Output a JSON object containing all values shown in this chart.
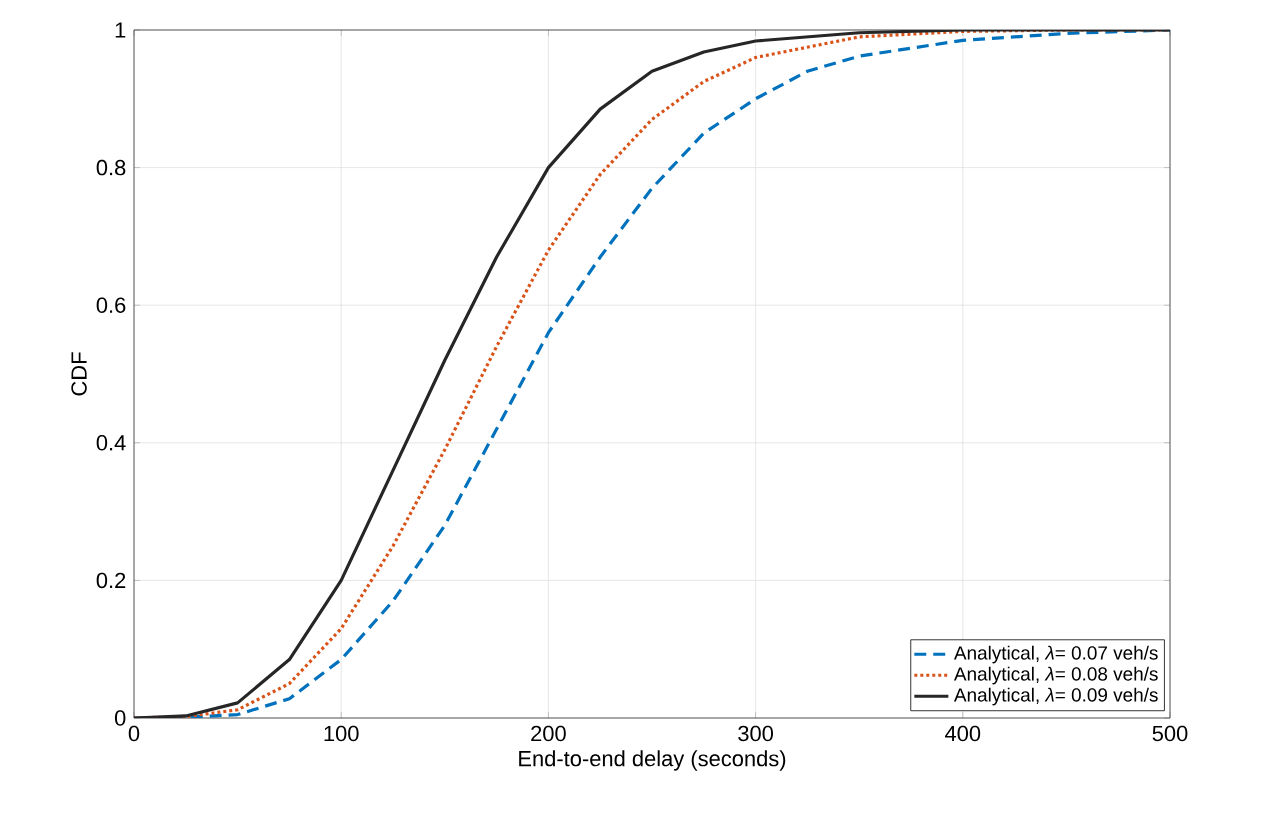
{
  "chart_data": {
    "type": "line",
    "xlabel": "End-to-end delay (seconds)",
    "ylabel": "CDF",
    "xlim": [
      0,
      500
    ],
    "ylim": [
      0,
      1
    ],
    "xticks": [
      0,
      100,
      200,
      300,
      400,
      500
    ],
    "yticks": [
      0,
      0.2,
      0.4,
      0.6,
      0.8,
      1
    ],
    "grid": true,
    "legend": "bottom right",
    "series": [
      {
        "name": "Analytical, *λ*= 0.07 veh/s",
        "color": "#0072bd",
        "line_style": "dashed",
        "x": [
          0,
          25,
          50,
          75,
          100,
          125,
          150,
          175,
          200,
          225,
          250,
          275,
          300,
          325,
          350,
          400,
          450,
          500
        ],
        "values": [
          0,
          0.001,
          0.005,
          0.028,
          0.085,
          0.17,
          0.28,
          0.42,
          0.56,
          0.67,
          0.77,
          0.85,
          0.9,
          0.94,
          0.962,
          0.985,
          0.995,
          1
        ]
      },
      {
        "name": "Analytical, *λ*= 0.08 veh/s",
        "color": "#d95319",
        "line_style": "dotted",
        "x": [
          0,
          25,
          50,
          75,
          100,
          125,
          150,
          175,
          200,
          225,
          250,
          275,
          300,
          350,
          400,
          450,
          500
        ],
        "values": [
          0,
          0.002,
          0.012,
          0.05,
          0.13,
          0.25,
          0.39,
          0.54,
          0.68,
          0.79,
          0.87,
          0.925,
          0.96,
          0.99,
          0.998,
          1,
          1
        ]
      },
      {
        "name": "Analytical, *λ*= 0.09 veh/s",
        "color": "#262626",
        "line_style": "solid",
        "x": [
          0,
          25,
          50,
          75,
          100,
          125,
          150,
          175,
          200,
          225,
          250,
          275,
          300,
          350,
          400,
          450,
          500
        ],
        "values": [
          0,
          0.003,
          0.022,
          0.085,
          0.2,
          0.36,
          0.52,
          0.67,
          0.8,
          0.885,
          0.94,
          0.968,
          0.984,
          0.996,
          1,
          1,
          1
        ]
      }
    ]
  }
}
